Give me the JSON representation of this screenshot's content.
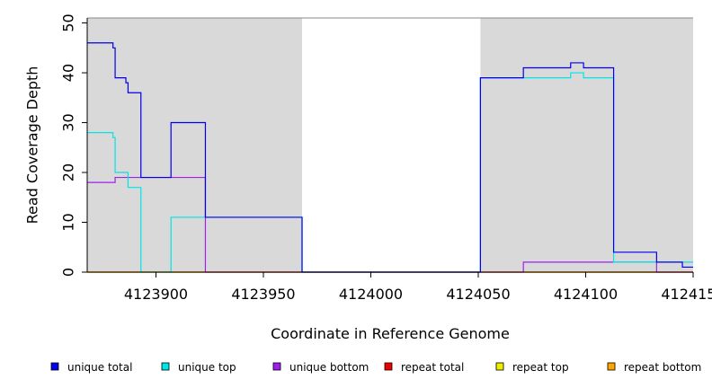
{
  "chart_data": {
    "type": "line",
    "title": "",
    "xlabel": "Coordinate in Reference Genome",
    "ylabel": "Read Coverage Depth",
    "xlim": [
      4123868,
      4124150
    ],
    "ylim": [
      0,
      51
    ],
    "x_ticks": [
      4123900,
      4123950,
      4124000,
      4124050,
      4124100,
      4124150
    ],
    "x_tick_labels": [
      "4123900",
      "4123950",
      "4124000",
      "4124050",
      "4124100",
      "4124150"
    ],
    "y_ticks": [
      0,
      10,
      20,
      30,
      40,
      50
    ],
    "y_tick_labels": [
      "0",
      "10",
      "20",
      "30",
      "40",
      "50"
    ],
    "shaded_regions": [
      {
        "x0": 4123868,
        "x1": 4123968,
        "color": "#d9d9d9"
      },
      {
        "x0": 4124051,
        "x1": 4124150,
        "color": "#d9d9d9"
      }
    ],
    "legend_position": "bottom",
    "series": [
      {
        "name": "unique total",
        "color": "#0000ee",
        "x": [
          4123868,
          4123880,
          4123881,
          4123886,
          4123887,
          4123893,
          4123907,
          4123923,
          4123968,
          4124051,
          4124071,
          4124093,
          4124099,
          4124113,
          4124133,
          4124145,
          4124150
        ],
        "y": [
          46,
          45,
          39,
          38,
          36,
          19,
          30,
          11,
          0,
          39,
          41,
          42,
          41,
          4,
          2,
          1,
          1
        ]
      },
      {
        "name": "unique top",
        "color": "#00e5e5",
        "x": [
          4123868,
          4123880,
          4123881,
          4123887,
          4123893,
          4123907,
          4123923,
          4123968,
          4124051,
          4124071,
          4124093,
          4124099,
          4124113,
          4124150
        ],
        "y": [
          28,
          27,
          20,
          17,
          0,
          11,
          11,
          0,
          39,
          39,
          40,
          39,
          2,
          2
        ]
      },
      {
        "name": "unique bottom",
        "color": "#a020f0",
        "x": [
          4123868,
          4123881,
          4123923,
          4124071,
          4124133,
          4124150
        ],
        "y": [
          18,
          19,
          0,
          2,
          0,
          0
        ]
      },
      {
        "name": "repeat total",
        "color": "#ee0000",
        "x": [
          4123868,
          4124150
        ],
        "y": [
          0,
          0
        ]
      },
      {
        "name": "repeat top",
        "color": "#eeee00",
        "x": [
          4123868,
          4124150
        ],
        "y": [
          0,
          0
        ]
      },
      {
        "name": "repeat bottom",
        "color": "#ffa500",
        "x": [
          4123868,
          4124150
        ],
        "y": [
          0,
          0
        ]
      }
    ]
  }
}
